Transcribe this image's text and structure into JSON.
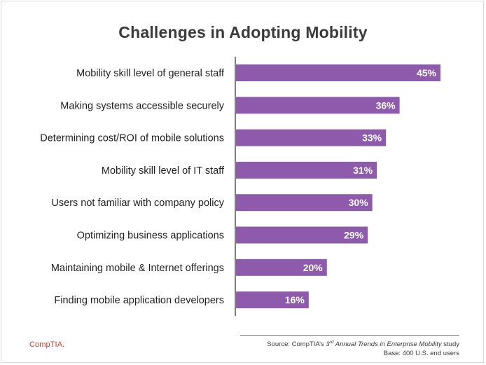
{
  "chart_data": {
    "type": "bar",
    "orientation": "horizontal",
    "title": "Challenges in Adopting Mobility",
    "categories": [
      "Mobility skill level of general staff",
      "Making systems accessible securely",
      "Determining cost/ROI of mobile solutions",
      "Mobility skill level of IT staff",
      "Users not familiar with company policy",
      "Optimizing business applications",
      "Maintaining mobile & Internet offerings",
      "Finding mobile application developers"
    ],
    "values": [
      45,
      36,
      33,
      31,
      30,
      29,
      20,
      16
    ],
    "value_labels": [
      "45%",
      "36%",
      "33%",
      "31%",
      "30%",
      "29%",
      "20%",
      "16%"
    ],
    "unit": "%",
    "xlim": [
      0,
      50
    ],
    "bar_color": "#8e5aab",
    "grid": false,
    "legend": "none"
  },
  "footer": {
    "source_prefix": "Source: CompTIA’s ",
    "source_ordinal": "3",
    "source_ordinal_suffix": "rd",
    "source_title": " Annual Trends in Enterprise Mobility",
    "source_suffix": " study",
    "base": "Base: 400 U.S. end users",
    "logo": "CompTIA."
  },
  "colors": {
    "bar": "#8e5aab",
    "title": "#3a3a3a",
    "axis": "#000000",
    "logo": "#d33a2c"
  }
}
